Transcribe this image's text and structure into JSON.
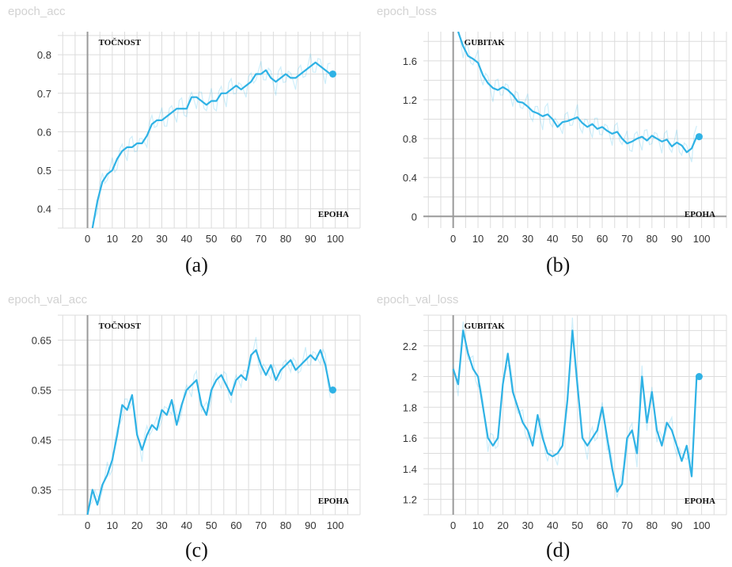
{
  "chart_data": [
    {
      "type": "line",
      "panel_title": "epoch_acc",
      "caption": "(a)",
      "ylabel": "TOČNOST",
      "xlabel": "EPOHA",
      "xlim": [
        -12,
        110
      ],
      "ylim": [
        0.35,
        0.86
      ],
      "xticks": [
        0,
        10,
        20,
        30,
        40,
        50,
        60,
        70,
        80,
        90,
        100
      ],
      "yticks": [
        0.4,
        0.5,
        0.6,
        0.7,
        0.8
      ],
      "ytick_labels": [
        "0.4",
        "0.5",
        "0.6",
        "0.7",
        "0.8"
      ],
      "grid": true,
      "series": [
        {
          "x": [
            2,
            4,
            6,
            8,
            10,
            12,
            14,
            16,
            18,
            20,
            22,
            24,
            26,
            28,
            30,
            32,
            34,
            36,
            38,
            40,
            42,
            44,
            46,
            48,
            50,
            52,
            54,
            56,
            58,
            60,
            62,
            64,
            66,
            68,
            70,
            72,
            74,
            76,
            78,
            80,
            82,
            84,
            86,
            88,
            90,
            92,
            94,
            96,
            98
          ],
          "values": [
            0.35,
            0.42,
            0.47,
            0.49,
            0.5,
            0.53,
            0.55,
            0.56,
            0.56,
            0.57,
            0.57,
            0.59,
            0.62,
            0.63,
            0.63,
            0.64,
            0.65,
            0.66,
            0.66,
            0.66,
            0.69,
            0.69,
            0.68,
            0.67,
            0.68,
            0.68,
            0.7,
            0.7,
            0.71,
            0.72,
            0.71,
            0.72,
            0.73,
            0.75,
            0.75,
            0.76,
            0.74,
            0.73,
            0.74,
            0.75,
            0.74,
            0.74,
            0.75,
            0.76,
            0.77,
            0.78,
            0.77,
            0.76,
            0.75
          ],
          "end_point": [
            99,
            0.75
          ]
        }
      ]
    },
    {
      "type": "line",
      "panel_title": "epoch_loss",
      "caption": "(b)",
      "ylabel": "GUBITAK",
      "xlabel": "EPOHA",
      "xlim": [
        -12,
        110
      ],
      "ylim": [
        -0.12,
        1.9
      ],
      "xticks": [
        0,
        10,
        20,
        30,
        40,
        50,
        60,
        70,
        80,
        90,
        100
      ],
      "yticks": [
        0,
        0.4,
        0.8,
        1.2,
        1.6
      ],
      "ytick_labels": [
        "0",
        "0.4",
        "0.8",
        "1.2",
        "1.6"
      ],
      "grid": true,
      "series": [
        {
          "x": [
            2,
            4,
            6,
            8,
            10,
            12,
            14,
            16,
            18,
            20,
            22,
            24,
            26,
            28,
            30,
            32,
            34,
            36,
            38,
            40,
            42,
            44,
            46,
            48,
            50,
            52,
            54,
            56,
            58,
            60,
            62,
            64,
            66,
            68,
            70,
            72,
            74,
            76,
            78,
            80,
            82,
            84,
            86,
            88,
            90,
            92,
            94,
            96,
            98
          ],
          "values": [
            1.9,
            1.75,
            1.65,
            1.62,
            1.58,
            1.45,
            1.37,
            1.32,
            1.3,
            1.33,
            1.3,
            1.25,
            1.18,
            1.17,
            1.13,
            1.08,
            1.06,
            1.03,
            1.05,
            1.0,
            0.92,
            0.97,
            0.98,
            1.0,
            1.02,
            0.96,
            0.92,
            0.95,
            0.9,
            0.92,
            0.88,
            0.85,
            0.87,
            0.8,
            0.75,
            0.77,
            0.8,
            0.82,
            0.78,
            0.83,
            0.8,
            0.77,
            0.79,
            0.72,
            0.76,
            0.73,
            0.66,
            0.7,
            0.82
          ],
          "end_point": [
            99,
            0.82
          ]
        }
      ]
    },
    {
      "type": "line",
      "panel_title": "epoch_val_acc",
      "caption": "(c)",
      "ylabel": "TOČNOST",
      "xlabel": "EPOHA",
      "xlim": [
        -12,
        110
      ],
      "ylim": [
        0.3,
        0.7
      ],
      "xticks": [
        0,
        10,
        20,
        30,
        40,
        50,
        60,
        70,
        80,
        90,
        100
      ],
      "yticks": [
        0.35,
        0.45,
        0.55,
        0.65
      ],
      "ytick_labels": [
        "0.35",
        "0.45",
        "0.55",
        "0.65"
      ],
      "grid": true,
      "series": [
        {
          "x": [
            0,
            2,
            4,
            6,
            8,
            10,
            12,
            14,
            16,
            18,
            20,
            22,
            24,
            26,
            28,
            30,
            32,
            34,
            36,
            38,
            40,
            42,
            44,
            46,
            48,
            50,
            52,
            54,
            56,
            58,
            60,
            62,
            64,
            66,
            68,
            70,
            72,
            74,
            76,
            78,
            80,
            82,
            84,
            86,
            88,
            90,
            92,
            94,
            96,
            98
          ],
          "values": [
            0.3,
            0.35,
            0.32,
            0.36,
            0.38,
            0.41,
            0.46,
            0.52,
            0.51,
            0.54,
            0.46,
            0.43,
            0.46,
            0.48,
            0.47,
            0.51,
            0.5,
            0.53,
            0.48,
            0.52,
            0.55,
            0.56,
            0.57,
            0.52,
            0.5,
            0.55,
            0.57,
            0.58,
            0.56,
            0.54,
            0.57,
            0.58,
            0.57,
            0.62,
            0.63,
            0.6,
            0.58,
            0.6,
            0.57,
            0.59,
            0.6,
            0.61,
            0.59,
            0.6,
            0.61,
            0.62,
            0.61,
            0.63,
            0.6,
            0.55
          ],
          "end_point": [
            99,
            0.55
          ]
        }
      ]
    },
    {
      "type": "line",
      "panel_title": "epoch_val_loss",
      "caption": "(d)",
      "ylabel": "GUBITAK",
      "xlabel": "EPOHA",
      "xlim": [
        -12,
        110
      ],
      "ylim": [
        1.1,
        2.4
      ],
      "xticks": [
        0,
        10,
        20,
        30,
        40,
        50,
        60,
        70,
        80,
        90,
        100
      ],
      "yticks": [
        1.2,
        1.4,
        1.6,
        1.8,
        2.0,
        2.2
      ],
      "ytick_labels": [
        "1.2",
        "1.4",
        "1.6",
        "1.8",
        "2",
        "2.2"
      ],
      "grid": true,
      "series": [
        {
          "x": [
            0,
            2,
            4,
            6,
            8,
            10,
            12,
            14,
            16,
            18,
            20,
            22,
            24,
            26,
            28,
            30,
            32,
            34,
            36,
            38,
            40,
            42,
            44,
            46,
            48,
            50,
            52,
            54,
            56,
            58,
            60,
            62,
            64,
            66,
            68,
            70,
            72,
            74,
            76,
            78,
            80,
            82,
            84,
            86,
            88,
            90,
            92,
            94,
            96,
            98
          ],
          "values": [
            2.05,
            1.95,
            2.3,
            2.15,
            2.05,
            2.0,
            1.8,
            1.6,
            1.55,
            1.6,
            1.95,
            2.15,
            1.9,
            1.8,
            1.7,
            1.65,
            1.55,
            1.75,
            1.6,
            1.5,
            1.48,
            1.5,
            1.55,
            1.85,
            2.3,
            1.95,
            1.6,
            1.55,
            1.6,
            1.65,
            1.8,
            1.6,
            1.4,
            1.25,
            1.3,
            1.6,
            1.65,
            1.5,
            2.0,
            1.7,
            1.9,
            1.65,
            1.55,
            1.7,
            1.65,
            1.55,
            1.45,
            1.55,
            1.35,
            2.0
          ],
          "end_point": [
            99,
            2.0
          ]
        }
      ]
    }
  ]
}
